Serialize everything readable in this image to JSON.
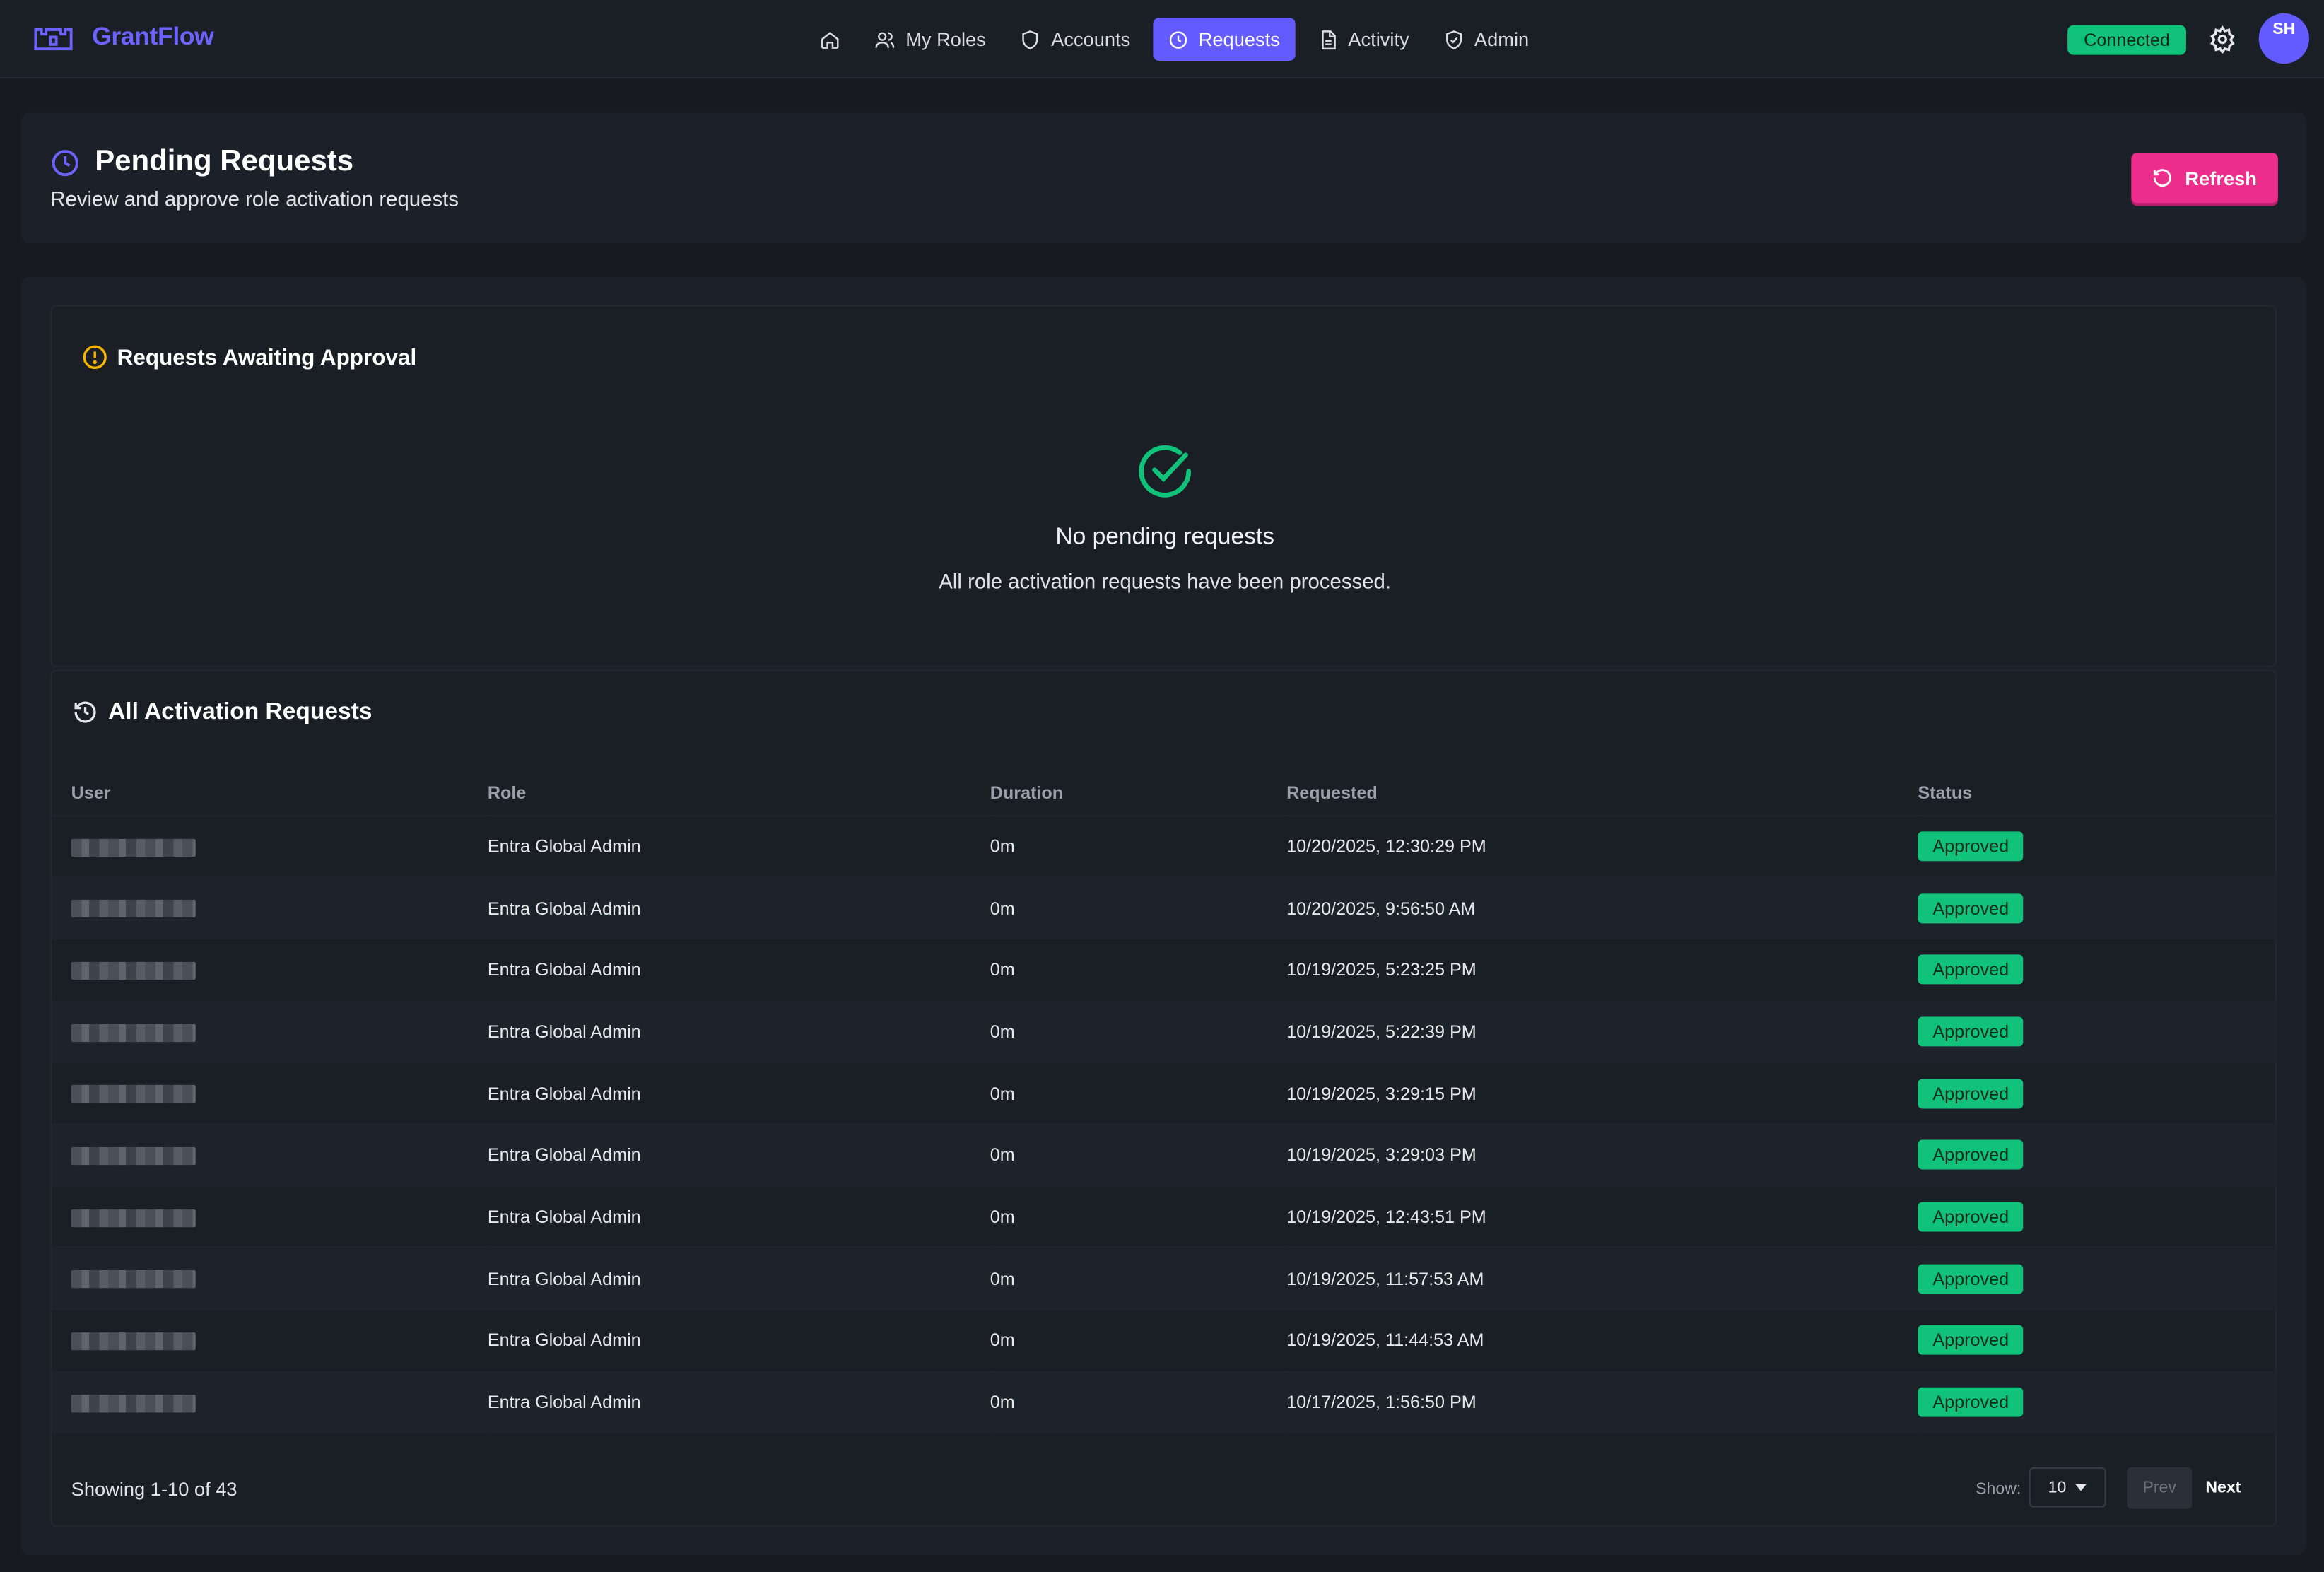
{
  "app": {
    "name": "GrantFlow",
    "logo_icon": "brand-castle-icon"
  },
  "nav": {
    "home_icon": "home-icon",
    "items": [
      {
        "label": "My Roles",
        "icon": "users-icon"
      },
      {
        "label": "Accounts",
        "icon": "shield-icon"
      },
      {
        "label": "Requests",
        "icon": "clock-icon",
        "active": true
      },
      {
        "label": "Activity",
        "icon": "document-icon"
      },
      {
        "label": "Admin",
        "icon": "shield-check-icon"
      }
    ],
    "status": "Connected",
    "avatar_initials": "SH"
  },
  "header": {
    "title": "Pending Requests",
    "subtitle": "Review and approve role activation requests",
    "refresh_label": "Refresh"
  },
  "awaiting": {
    "title": "Requests Awaiting Approval",
    "empty_title": "No pending requests",
    "empty_subtitle": "All role activation requests have been processed."
  },
  "all_requests": {
    "title": "All Activation Requests",
    "columns": {
      "user": "User",
      "role": "Role",
      "duration": "Duration",
      "requested": "Requested",
      "status": "Status"
    },
    "rows": [
      {
        "role": "Entra Global Admin",
        "duration": "0m",
        "requested": "10/20/2025, 12:30:29 PM",
        "status": "Approved"
      },
      {
        "role": "Entra Global Admin",
        "duration": "0m",
        "requested": "10/20/2025, 9:56:50 AM",
        "status": "Approved"
      },
      {
        "role": "Entra Global Admin",
        "duration": "0m",
        "requested": "10/19/2025, 5:23:25 PM",
        "status": "Approved"
      },
      {
        "role": "Entra Global Admin",
        "duration": "0m",
        "requested": "10/19/2025, 5:22:39 PM",
        "status": "Approved"
      },
      {
        "role": "Entra Global Admin",
        "duration": "0m",
        "requested": "10/19/2025, 3:29:15 PM",
        "status": "Approved"
      },
      {
        "role": "Entra Global Admin",
        "duration": "0m",
        "requested": "10/19/2025, 3:29:03 PM",
        "status": "Approved"
      },
      {
        "role": "Entra Global Admin",
        "duration": "0m",
        "requested": "10/19/2025, 12:43:51 PM",
        "status": "Approved"
      },
      {
        "role": "Entra Global Admin",
        "duration": "0m",
        "requested": "10/19/2025, 11:57:53 AM",
        "status": "Approved"
      },
      {
        "role": "Entra Global Admin",
        "duration": "0m",
        "requested": "10/19/2025, 11:44:53 AM",
        "status": "Approved"
      },
      {
        "role": "Entra Global Admin",
        "duration": "0m",
        "requested": "10/17/2025, 1:56:50 PM",
        "status": "Approved"
      }
    ],
    "showing": "Showing 1-10 of 43",
    "show_label": "Show:",
    "page_size": "10",
    "prev_label": "Prev",
    "next_label": "Next"
  },
  "colors": {
    "accent": "#635bff",
    "refresh": "#ec2d8b",
    "success": "#10c27a",
    "warning": "#f5b400"
  }
}
